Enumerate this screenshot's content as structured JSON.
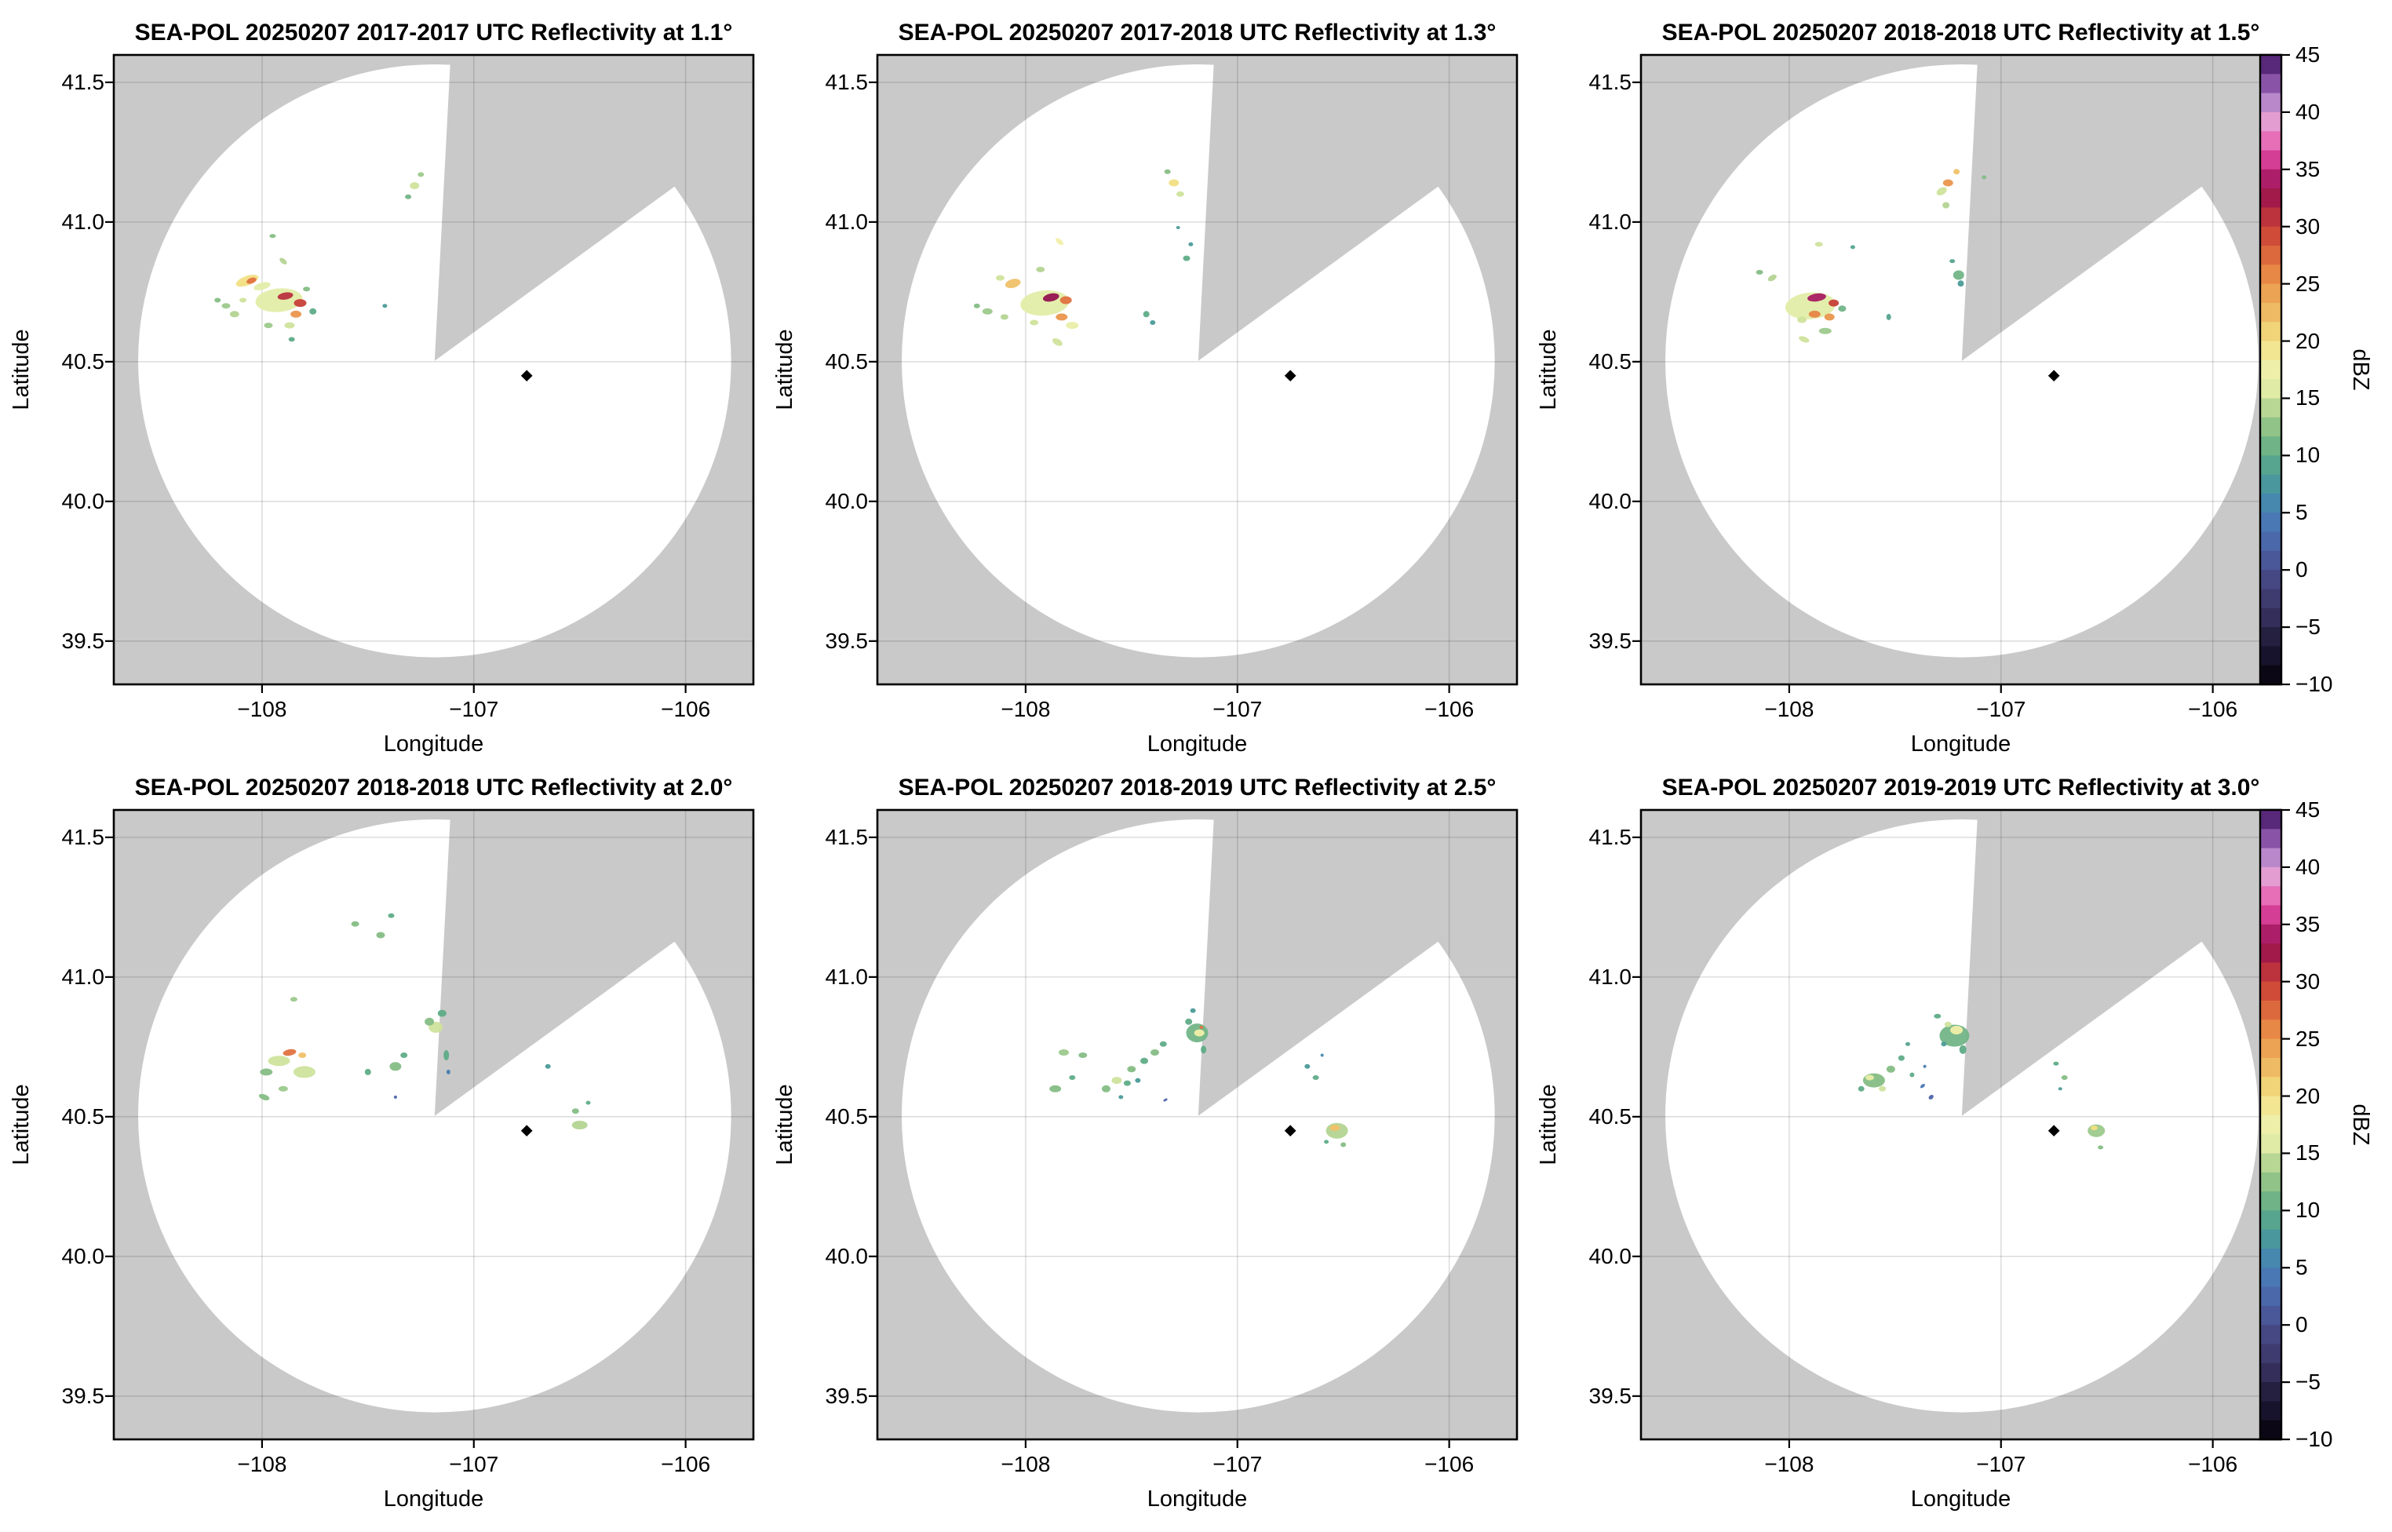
{
  "figure_type": "radar-ppi-multipanel",
  "axes": {
    "xlabel": "Longitude",
    "ylabel": "Latitude",
    "xticks": [
      -108,
      -107,
      -106
    ],
    "xticklabels": [
      "−108",
      "−107",
      "−106"
    ],
    "yticks": [
      39.5,
      40.0,
      40.5,
      41.0,
      41.5
    ],
    "yticklabels": [
      "39.5",
      "40.0",
      "40.5",
      "41.0",
      "41.5"
    ],
    "xlim": [
      -108.7,
      -105.68
    ],
    "ylim": [
      39.345,
      41.598
    ],
    "grid": true
  },
  "radar": {
    "center_lon": -107.185,
    "center_lat": 40.503,
    "range_radius_deg_lon": 1.4,
    "blanked_sector_azimuth_deg": [
      3,
      54
    ],
    "site_marker": {
      "lon": -106.75,
      "lat": 40.45,
      "shape": "diamond",
      "color": "#000000"
    },
    "outside_color": "#c9c9c9",
    "coverage_color": "#ffffff"
  },
  "colorbar": {
    "label": "dBZ",
    "min": -10,
    "max": 45,
    "ticks": [
      45,
      40,
      35,
      30,
      25,
      20,
      15,
      10,
      5,
      0,
      -5,
      -10
    ],
    "ticklabels": [
      "45",
      "40",
      "35",
      "30",
      "25",
      "20",
      "15",
      "10",
      "5",
      "0",
      "−5",
      "−10"
    ],
    "stops": [
      [
        -10,
        "#050208"
      ],
      [
        -8,
        "#140f26"
      ],
      [
        -6,
        "#241d3e"
      ],
      [
        -4,
        "#35305c"
      ],
      [
        -2,
        "#413f75"
      ],
      [
        0,
        "#4a4f8d"
      ],
      [
        2,
        "#4b63a8"
      ],
      [
        4,
        "#4a77b5"
      ],
      [
        6,
        "#4689ad"
      ],
      [
        8,
        "#4b9b98"
      ],
      [
        10,
        "#5fac88"
      ],
      [
        12,
        "#85bd85"
      ],
      [
        14,
        "#b3d492"
      ],
      [
        15,
        "#cfe39c"
      ],
      [
        16,
        "#e3eda8"
      ],
      [
        18,
        "#f1efa9"
      ],
      [
        20,
        "#f2df83"
      ],
      [
        22,
        "#f0c169"
      ],
      [
        24,
        "#eda656"
      ],
      [
        26,
        "#e68544"
      ],
      [
        28,
        "#d95f3b"
      ],
      [
        30,
        "#c73f38"
      ],
      [
        32,
        "#ac2144"
      ],
      [
        33,
        "#951250"
      ],
      [
        34,
        "#a81b63"
      ],
      [
        35,
        "#c52d86"
      ],
      [
        36,
        "#d84198"
      ],
      [
        37,
        "#e35fae"
      ],
      [
        38,
        "#e87ec2"
      ],
      [
        39,
        "#e79cd0"
      ],
      [
        40,
        "#d0a0d8"
      ],
      [
        41,
        "#b383c8"
      ],
      [
        42,
        "#9763b4"
      ],
      [
        43,
        "#7a449c"
      ],
      [
        44,
        "#5c2b80"
      ],
      [
        45,
        "#411a5e"
      ]
    ]
  },
  "echo_format": "lon, lat, dBZ, width_px, height_px, rotation_deg",
  "chart_data": [
    {
      "type": "radar_ppi",
      "title": "SEA-POL 20250207 2017-2017 UTC Reflectivity at 1.1°",
      "time_range_utc": "2017-2017",
      "elevation": "1.1°",
      "echoes": [
        [
          -108.07,
          40.79,
          20,
          30,
          12,
          -20
        ],
        [
          -108.05,
          40.79,
          27,
          13,
          7,
          -20
        ],
        [
          -108.0,
          40.77,
          16,
          22,
          9,
          -15
        ],
        [
          -108.17,
          40.7,
          13,
          11,
          7,
          0
        ],
        [
          -108.13,
          40.67,
          14,
          12,
          8,
          0
        ],
        [
          -108.21,
          40.72,
          12,
          8,
          6,
          0
        ],
        [
          -108.09,
          40.72,
          15,
          9,
          6,
          0
        ],
        [
          -107.92,
          40.72,
          16,
          60,
          30,
          -5
        ],
        [
          -107.89,
          40.735,
          31,
          20,
          9,
          -10
        ],
        [
          -107.82,
          40.71,
          30,
          16,
          10,
          0
        ],
        [
          -107.84,
          40.67,
          25,
          14,
          9,
          0
        ],
        [
          -107.87,
          40.63,
          15,
          13,
          8,
          0
        ],
        [
          -107.97,
          40.63,
          13,
          11,
          7,
          0
        ],
        [
          -107.76,
          40.68,
          10,
          9,
          8,
          0
        ],
        [
          -107.86,
          40.58,
          10,
          8,
          6,
          0
        ],
        [
          -107.79,
          40.76,
          12,
          9,
          6,
          0
        ],
        [
          -107.9,
          40.86,
          14,
          11,
          6,
          40
        ],
        [
          -107.95,
          40.95,
          12,
          8,
          5,
          0
        ],
        [
          -107.42,
          40.7,
          8,
          6,
          5,
          0
        ],
        [
          -107.28,
          41.13,
          15,
          12,
          9,
          0
        ],
        [
          -107.25,
          41.17,
          13,
          8,
          6,
          0
        ],
        [
          -107.31,
          41.09,
          11,
          8,
          6,
          0
        ]
      ]
    },
    {
      "type": "radar_ppi",
      "title": "SEA-POL 20250207 2017-2018 UTC Reflectivity at 1.3°",
      "time_range_utc": "2017-2018",
      "elevation": "1.3°",
      "echoes": [
        [
          -108.06,
          40.78,
          22,
          20,
          11,
          -15
        ],
        [
          -108.12,
          40.8,
          15,
          11,
          7,
          0
        ],
        [
          -108.18,
          40.68,
          13,
          13,
          8,
          0
        ],
        [
          -108.1,
          40.66,
          14,
          10,
          7,
          0
        ],
        [
          -108.23,
          40.7,
          12,
          8,
          6,
          0
        ],
        [
          -107.91,
          40.71,
          16,
          62,
          32,
          -5
        ],
        [
          -107.88,
          40.73,
          33,
          21,
          10,
          -12
        ],
        [
          -107.81,
          40.72,
          27,
          15,
          10,
          0
        ],
        [
          -107.83,
          40.66,
          25,
          15,
          9,
          0
        ],
        [
          -107.78,
          40.63,
          17,
          16,
          9,
          0
        ],
        [
          -107.96,
          40.64,
          15,
          11,
          7,
          0
        ],
        [
          -107.85,
          40.57,
          15,
          14,
          8,
          30
        ],
        [
          -107.93,
          40.83,
          14,
          11,
          7,
          0
        ],
        [
          -107.84,
          40.93,
          18,
          12,
          6,
          40
        ],
        [
          -107.43,
          40.67,
          10,
          8,
          8,
          0
        ],
        [
          -107.4,
          40.64,
          8,
          7,
          6,
          0
        ],
        [
          -107.24,
          40.87,
          10,
          9,
          7,
          0
        ],
        [
          -107.22,
          40.92,
          8,
          6,
          5,
          0
        ],
        [
          -107.28,
          40.98,
          8,
          5,
          4,
          0
        ],
        [
          -107.3,
          41.14,
          20,
          13,
          9,
          0
        ],
        [
          -107.27,
          41.1,
          15,
          10,
          7,
          0
        ],
        [
          -107.33,
          41.18,
          12,
          8,
          6,
          0
        ]
      ]
    },
    {
      "type": "radar_ppi",
      "title": "SEA-POL 20250207 2018-2018 UTC Reflectivity at 1.5°",
      "time_range_utc": "2018-2018",
      "elevation": "1.5°",
      "echoes": [
        [
          -108.08,
          40.8,
          14,
          12,
          7,
          -30
        ],
        [
          -108.14,
          40.82,
          12,
          9,
          6,
          0
        ],
        [
          -107.9,
          40.7,
          16,
          64,
          34,
          -5
        ],
        [
          -107.87,
          40.73,
          34,
          24,
          10,
          -8
        ],
        [
          -107.79,
          40.71,
          30,
          13,
          9,
          0
        ],
        [
          -107.88,
          40.67,
          26,
          15,
          9,
          0
        ],
        [
          -107.81,
          40.66,
          25,
          13,
          9,
          0
        ],
        [
          -107.94,
          40.65,
          15,
          12,
          8,
          0
        ],
        [
          -107.75,
          40.69,
          11,
          10,
          8,
          0
        ],
        [
          -107.83,
          40.61,
          13,
          16,
          8,
          0
        ],
        [
          -107.93,
          40.58,
          15,
          14,
          7,
          20
        ],
        [
          -107.86,
          40.92,
          15,
          10,
          6,
          0
        ],
        [
          -107.7,
          40.91,
          9,
          6,
          5,
          0
        ],
        [
          -107.53,
          40.66,
          9,
          6,
          8,
          0
        ],
        [
          -107.2,
          40.81,
          11,
          14,
          12,
          0
        ],
        [
          -107.19,
          40.78,
          8,
          8,
          8,
          0
        ],
        [
          -107.23,
          40.86,
          9,
          7,
          5,
          0
        ],
        [
          -107.25,
          41.14,
          25,
          13,
          9,
          0
        ],
        [
          -107.21,
          41.18,
          22,
          8,
          7,
          0
        ],
        [
          -107.28,
          41.11,
          15,
          14,
          9,
          -30
        ],
        [
          -107.26,
          41.06,
          14,
          9,
          8,
          0
        ],
        [
          -107.08,
          41.16,
          12,
          6,
          5,
          0
        ]
      ]
    },
    {
      "type": "radar_ppi",
      "title": "SEA-POL 20250207 2018-2018 UTC Reflectivity at 2.0°",
      "time_range_utc": "2018-2018",
      "elevation": "2.0°",
      "echoes": [
        [
          -107.87,
          40.73,
          27,
          17,
          8,
          -10
        ],
        [
          -107.81,
          40.72,
          22,
          10,
          7,
          0
        ],
        [
          -107.92,
          40.7,
          15,
          28,
          13,
          0
        ],
        [
          -107.8,
          40.66,
          15,
          28,
          15,
          0
        ],
        [
          -107.98,
          40.66,
          12,
          16,
          9,
          0
        ],
        [
          -107.99,
          40.57,
          12,
          14,
          7,
          20
        ],
        [
          -107.9,
          40.6,
          13,
          12,
          7,
          0
        ],
        [
          -107.85,
          40.92,
          13,
          9,
          6,
          0
        ],
        [
          -107.5,
          40.66,
          10,
          8,
          8,
          0
        ],
        [
          -107.37,
          40.68,
          12,
          15,
          11,
          0
        ],
        [
          -107.33,
          40.72,
          10,
          9,
          7,
          0
        ],
        [
          -107.37,
          40.57,
          2,
          4,
          4,
          0
        ],
        [
          -107.18,
          40.82,
          15,
          18,
          14,
          0
        ],
        [
          -107.21,
          40.84,
          12,
          12,
          10,
          0
        ],
        [
          -107.15,
          40.87,
          10,
          11,
          9,
          0
        ],
        [
          -107.13,
          40.72,
          10,
          7,
          13,
          0
        ],
        [
          -107.12,
          40.66,
          5,
          5,
          6,
          0
        ],
        [
          -107.56,
          41.19,
          12,
          10,
          7,
          0
        ],
        [
          -107.44,
          41.15,
          12,
          11,
          8,
          0
        ],
        [
          -107.39,
          41.22,
          10,
          8,
          6,
          0
        ],
        [
          -106.65,
          40.68,
          8,
          7,
          6,
          0
        ],
        [
          -106.52,
          40.52,
          12,
          9,
          7,
          0
        ],
        [
          -106.5,
          40.47,
          14,
          20,
          11,
          0
        ],
        [
          -106.46,
          40.55,
          10,
          6,
          5,
          0
        ]
      ]
    },
    {
      "type": "radar_ppi",
      "title": "SEA-POL 20250207 2018-2019 UTC Reflectivity at 2.5°",
      "time_range_utc": "2018-2019",
      "elevation": "2.5°",
      "echoes": [
        [
          -107.82,
          40.73,
          13,
          13,
          8,
          0
        ],
        [
          -107.73,
          40.72,
          12,
          11,
          7,
          0
        ],
        [
          -107.86,
          40.6,
          12,
          15,
          9,
          0
        ],
        [
          -107.78,
          40.64,
          10,
          8,
          6,
          0
        ],
        [
          -107.62,
          40.6,
          12,
          11,
          9,
          0
        ],
        [
          -107.57,
          40.63,
          15,
          13,
          9,
          0
        ],
        [
          -107.52,
          40.62,
          10,
          9,
          7,
          0
        ],
        [
          -107.5,
          40.67,
          12,
          11,
          8,
          0
        ],
        [
          -107.44,
          40.7,
          10,
          10,
          8,
          0
        ],
        [
          -107.39,
          40.73,
          12,
          11,
          8,
          0
        ],
        [
          -107.35,
          40.76,
          10,
          9,
          7,
          0
        ],
        [
          -107.47,
          40.63,
          8,
          7,
          6,
          0
        ],
        [
          -107.55,
          40.57,
          8,
          6,
          5,
          0
        ],
        [
          -107.19,
          40.8,
          11,
          28,
          24,
          0
        ],
        [
          -107.18,
          40.8,
          18,
          13,
          9,
          0
        ],
        [
          -107.17,
          40.82,
          27,
          5,
          4,
          0
        ],
        [
          -107.23,
          40.84,
          10,
          9,
          8,
          0
        ],
        [
          -107.16,
          40.74,
          10,
          7,
          10,
          0
        ],
        [
          -107.21,
          40.88,
          8,
          7,
          6,
          0
        ],
        [
          -107.34,
          40.56,
          2,
          6,
          3,
          -30
        ],
        [
          -106.67,
          40.68,
          8,
          7,
          6,
          0
        ],
        [
          -106.63,
          40.64,
          10,
          8,
          6,
          0
        ],
        [
          -106.6,
          40.72,
          6,
          4,
          4,
          0
        ],
        [
          -106.53,
          40.45,
          14,
          28,
          20,
          0
        ],
        [
          -106.54,
          40.46,
          22,
          13,
          8,
          0
        ],
        [
          -106.5,
          40.4,
          12,
          7,
          6,
          0
        ],
        [
          -106.58,
          40.41,
          10,
          6,
          5,
          0
        ]
      ]
    },
    {
      "type": "radar_ppi",
      "title": "SEA-POL 20250207 2019-2019 UTC Reflectivity at 3.0°",
      "time_range_utc": "2019-2019",
      "elevation": "3.0°",
      "echoes": [
        [
          -107.6,
          40.63,
          12,
          28,
          18,
          0
        ],
        [
          -107.62,
          40.64,
          17,
          11,
          7,
          0
        ],
        [
          -107.56,
          40.6,
          15,
          9,
          7,
          0
        ],
        [
          -107.66,
          40.6,
          10,
          8,
          7,
          0
        ],
        [
          -107.52,
          40.67,
          12,
          11,
          9,
          0
        ],
        [
          -107.47,
          40.71,
          10,
          8,
          7,
          0
        ],
        [
          -107.42,
          40.65,
          10,
          6,
          6,
          0
        ],
        [
          -107.37,
          40.61,
          4,
          7,
          4,
          -40
        ],
        [
          -107.33,
          40.57,
          2,
          7,
          5,
          -40
        ],
        [
          -107.44,
          40.76,
          9,
          6,
          5,
          0
        ],
        [
          -107.36,
          40.68,
          5,
          4,
          4,
          0
        ],
        [
          -107.22,
          40.79,
          11,
          38,
          28,
          0
        ],
        [
          -107.21,
          40.81,
          18,
          16,
          11,
          0
        ],
        [
          -107.25,
          40.83,
          15,
          9,
          7,
          0
        ],
        [
          -107.18,
          40.74,
          10,
          9,
          11,
          0
        ],
        [
          -107.3,
          40.86,
          10,
          9,
          6,
          0
        ],
        [
          -107.27,
          40.76,
          8,
          7,
          6,
          0
        ],
        [
          -106.74,
          40.69,
          10,
          7,
          5,
          0
        ],
        [
          -106.7,
          40.64,
          12,
          8,
          6,
          0
        ],
        [
          -106.72,
          40.6,
          8,
          5,
          4,
          0
        ],
        [
          -106.55,
          40.45,
          13,
          22,
          16,
          0
        ],
        [
          -106.56,
          40.46,
          20,
          9,
          6,
          0
        ],
        [
          -106.53,
          40.39,
          12,
          7,
          5,
          0
        ]
      ]
    }
  ]
}
